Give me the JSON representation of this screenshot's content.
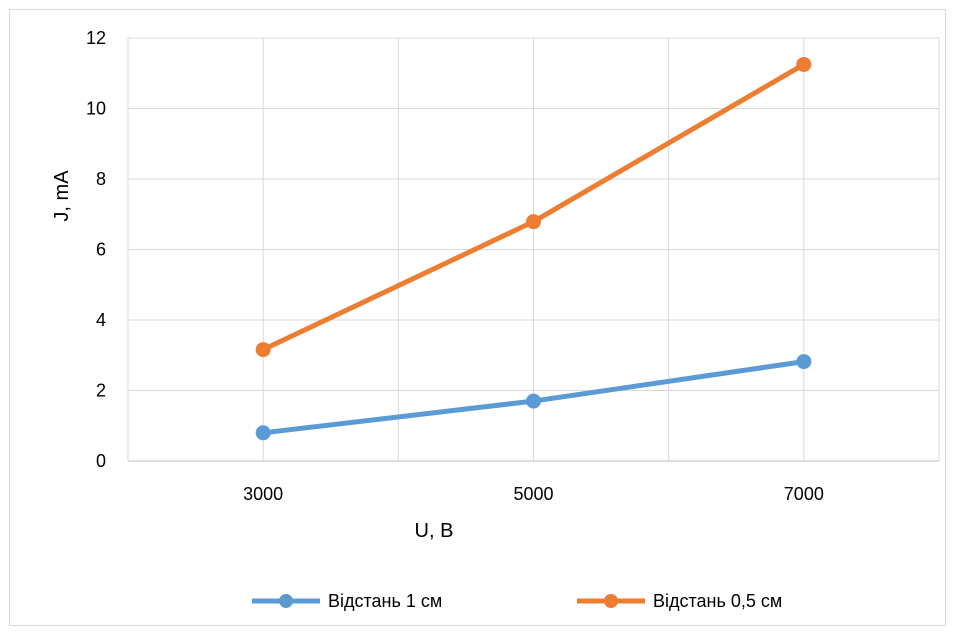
{
  "chart_data": {
    "type": "line",
    "title": "",
    "xlabel": "U, В",
    "ylabel": "J, mA",
    "categories": [
      3000,
      5000,
      7000
    ],
    "x_ticks": [
      "3000",
      "5000",
      "7000"
    ],
    "ylim": [
      0,
      12
    ],
    "y_ticks": [
      0,
      2,
      4,
      6,
      8,
      10,
      12
    ],
    "grid": true,
    "legend_position": "bottom",
    "series": [
      {
        "name": "Відстань 1 см",
        "color": "#5b9bd5",
        "values": [
          0.8,
          1.7,
          2.82
        ]
      },
      {
        "name": "Відстань 0,5 см",
        "color": "#ed7d31",
        "values": [
          3.16,
          6.79,
          11.25
        ]
      }
    ]
  }
}
